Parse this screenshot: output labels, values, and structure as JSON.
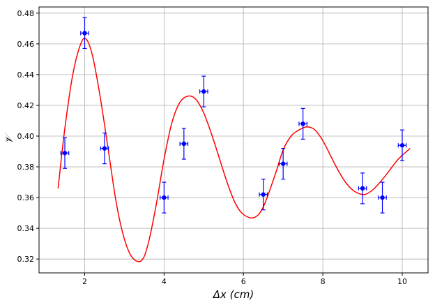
{
  "chart_data": {
    "type": "scatter",
    "title": "",
    "xlabel": "Δx (cm)",
    "ylabel": "𝒱",
    "xlim": [
      0.85,
      10.65
    ],
    "ylim": [
      0.311,
      0.484
    ],
    "xticks": [
      2,
      4,
      6,
      8,
      10
    ],
    "yticks": [
      0.32,
      0.34,
      0.36,
      0.38,
      0.4,
      0.42,
      0.44,
      0.46,
      0.48
    ],
    "xtick_labels": [
      "2",
      "4",
      "6",
      "8",
      "10"
    ],
    "ytick_labels": [
      "0.32",
      "0.34",
      "0.36",
      "0.38",
      "0.40",
      "0.42",
      "0.44",
      "0.46",
      "0.48"
    ],
    "grid": true,
    "legend": "none",
    "colors": {
      "points": "#0000ff",
      "fit": "#ff0000",
      "grid": "#b0b0b0"
    },
    "series": [
      {
        "kind": "errorbar-points",
        "x": [
          1.5,
          2.0,
          2.5,
          4.0,
          4.5,
          5.0,
          6.5,
          7.0,
          7.5,
          9.0,
          9.5,
          10.0
        ],
        "y": [
          0.389,
          0.467,
          0.392,
          0.36,
          0.395,
          0.429,
          0.362,
          0.382,
          0.408,
          0.366,
          0.36,
          0.394
        ],
        "yerr": [
          0.01,
          0.01,
          0.01,
          0.01,
          0.01,
          0.01,
          0.01,
          0.01,
          0.01,
          0.01,
          0.01,
          0.01
        ],
        "xerr": [
          0.1,
          0.1,
          0.1,
          0.1,
          0.1,
          0.1,
          0.1,
          0.1,
          0.1,
          0.1,
          0.1,
          0.1
        ]
      },
      {
        "kind": "fit-curve",
        "x": [
          1.33,
          1.5,
          1.7,
          1.9,
          2.04,
          2.2,
          2.4,
          2.6,
          2.8,
          3.0,
          3.2,
          3.43,
          3.6,
          3.8,
          4.0,
          4.2,
          4.4,
          4.6,
          4.8,
          5.0,
          5.2,
          5.4,
          5.6,
          5.8,
          6.0,
          6.27,
          6.5,
          6.8,
          7.0,
          7.2,
          7.4,
          7.6,
          7.8,
          8.0,
          8.2,
          8.4,
          8.6,
          8.8,
          9.05,
          9.3,
          9.6,
          9.9,
          10.2
        ],
        "y": [
          0.366,
          0.405,
          0.44,
          0.46,
          0.463,
          0.452,
          0.424,
          0.39,
          0.356,
          0.333,
          0.321,
          0.319,
          0.33,
          0.355,
          0.385,
          0.409,
          0.422,
          0.426,
          0.424,
          0.415,
          0.401,
          0.385,
          0.369,
          0.356,
          0.349,
          0.347,
          0.354,
          0.375,
          0.391,
          0.4,
          0.404,
          0.406,
          0.404,
          0.397,
          0.387,
          0.377,
          0.369,
          0.364,
          0.362,
          0.366,
          0.375,
          0.385,
          0.392
        ]
      }
    ]
  }
}
